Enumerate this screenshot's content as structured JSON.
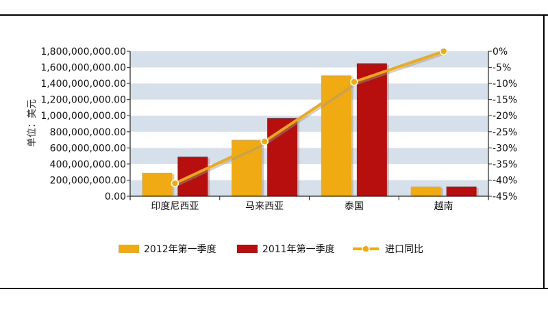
{
  "chart_data": {
    "type": "bar",
    "ylabel": "单位：美元",
    "categories": [
      "印度尼西亚",
      "马来西亚",
      "泰国",
      "越南"
    ],
    "series": [
      {
        "name": "2012年第一季度",
        "type": "bar",
        "axis": "left",
        "color": "#F0AA12",
        "values": [
          290000000,
          700000000,
          1500000000,
          120000000
        ]
      },
      {
        "name": "2011年第一季度",
        "type": "bar",
        "axis": "left",
        "color": "#B70E0E",
        "values": [
          490000000,
          970000000,
          1650000000,
          120000000
        ]
      },
      {
        "name": "进口同比",
        "type": "line",
        "axis": "right",
        "color": "#F0AA12",
        "values": [
          -41,
          -28,
          -9.5,
          0
        ]
      }
    ],
    "left_axis": {
      "ylim": [
        0,
        1800000000
      ],
      "tick_labels": [
        "0.00",
        "200,000,000.00",
        "400,000,000.00",
        "600,000,000.00",
        "800,000,000.00",
        "1,000,000,000.00",
        "1,200,000,000.00",
        "1,400,000,000.00",
        "1,600,000,000.00",
        "1,800,000,000.00"
      ]
    },
    "right_axis": {
      "ylim": [
        -45,
        0
      ],
      "tick_labels": [
        "-45%",
        "-40%",
        "-35%",
        "-30%",
        "-25%",
        "-20%",
        "-15%",
        "-10%",
        "-5%",
        "0%"
      ]
    },
    "grid": true,
    "legend_position": "bottom"
  }
}
